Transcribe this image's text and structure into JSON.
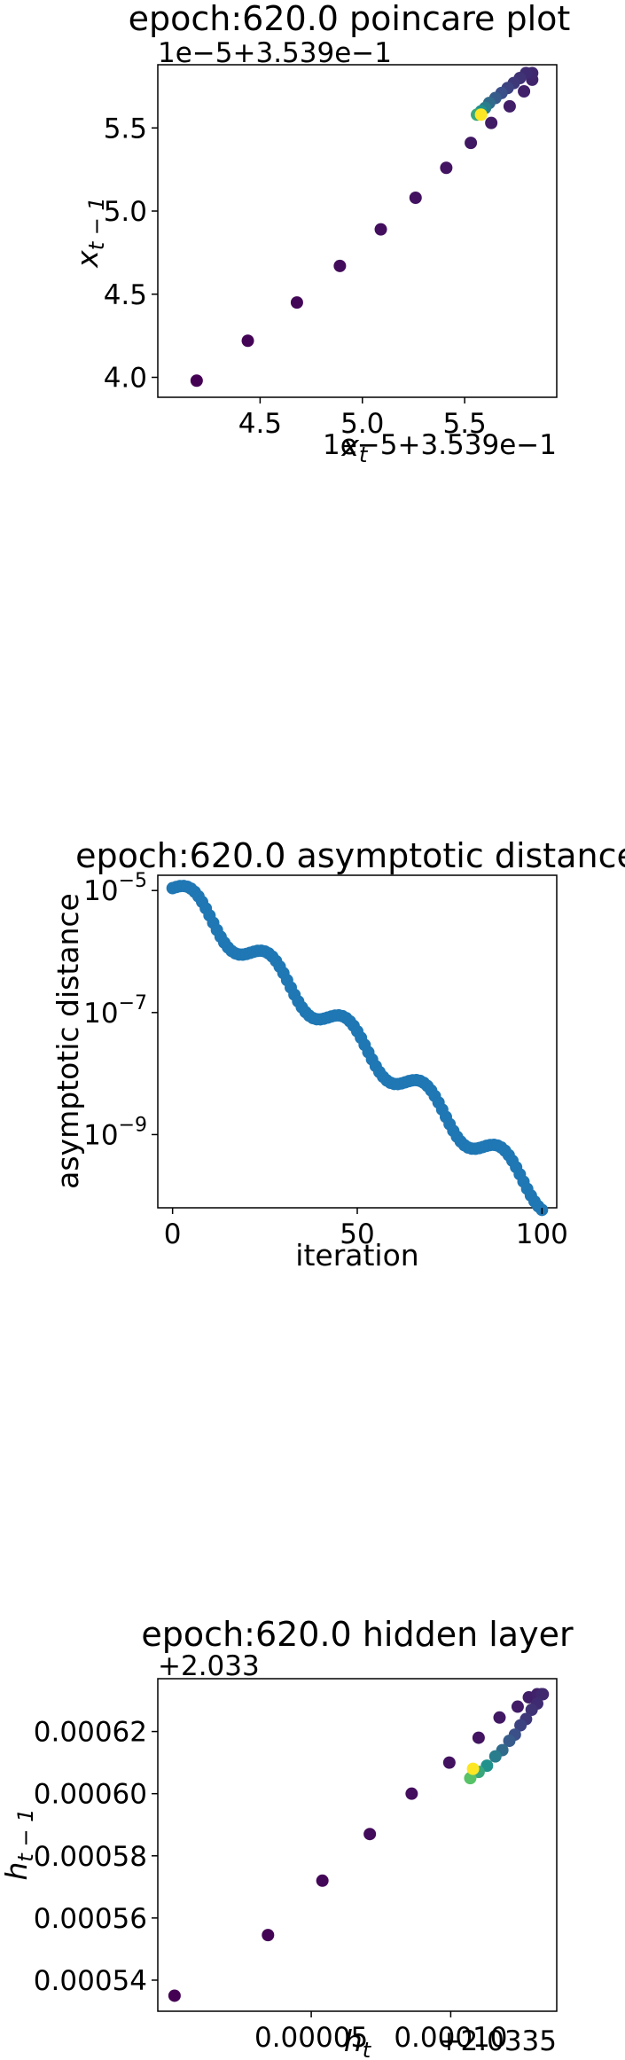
{
  "chart_data": [
    {
      "type": "scatter",
      "title": "epoch:620.0 poincare plot",
      "xlabel": "x_t",
      "ylabel": "x_{t-1}",
      "x_offset_text": "1e−5+3.539e−1",
      "y_offset_text": "1e−5+3.539e−1",
      "xlim": [
        4.0,
        5.95
      ],
      "ylim": [
        3.88,
        5.88
      ],
      "xticks": [
        4.5,
        5.0,
        5.5
      ],
      "xtick_labels": [
        "4.5",
        "5.0",
        "5.5"
      ],
      "yticks": [
        4.0,
        4.5,
        5.0,
        5.5
      ],
      "ytick_labels": [
        "4.0",
        "4.5",
        "5.0",
        "5.5"
      ],
      "colormap": "viridis",
      "points": [
        {
          "x": 4.19,
          "y": 3.98,
          "c": 0.0
        },
        {
          "x": 4.44,
          "y": 4.22,
          "c": 0.01
        },
        {
          "x": 4.68,
          "y": 4.45,
          "c": 0.02
        },
        {
          "x": 4.89,
          "y": 4.67,
          "c": 0.03
        },
        {
          "x": 5.09,
          "y": 4.89,
          "c": 0.04
        },
        {
          "x": 5.26,
          "y": 5.08,
          "c": 0.05
        },
        {
          "x": 5.41,
          "y": 5.26,
          "c": 0.06
        },
        {
          "x": 5.53,
          "y": 5.41,
          "c": 0.07
        },
        {
          "x": 5.63,
          "y": 5.53,
          "c": 0.08
        },
        {
          "x": 5.72,
          "y": 5.63,
          "c": 0.09
        },
        {
          "x": 5.79,
          "y": 5.72,
          "c": 0.1
        },
        {
          "x": 5.83,
          "y": 5.79,
          "c": 0.11
        },
        {
          "x": 5.83,
          "y": 5.83,
          "c": 0.12
        },
        {
          "x": 5.8,
          "y": 5.83,
          "c": 0.13
        },
        {
          "x": 5.77,
          "y": 5.8,
          "c": 0.15
        },
        {
          "x": 5.74,
          "y": 5.77,
          "c": 0.17
        },
        {
          "x": 5.71,
          "y": 5.74,
          "c": 0.2
        },
        {
          "x": 5.68,
          "y": 5.71,
          "c": 0.24
        },
        {
          "x": 5.65,
          "y": 5.68,
          "c": 0.29
        },
        {
          "x": 5.62,
          "y": 5.65,
          "c": 0.35
        },
        {
          "x": 5.6,
          "y": 5.62,
          "c": 0.42
        },
        {
          "x": 5.58,
          "y": 5.6,
          "c": 0.5
        },
        {
          "x": 5.56,
          "y": 5.58,
          "c": 0.6
        },
        {
          "x": 5.58,
          "y": 5.58,
          "c": 1.0
        }
      ]
    },
    {
      "type": "scatter",
      "title": "epoch:620.0 asymptotic distance",
      "xlabel": "iteration",
      "ylabel": "asymptotic distance",
      "xlim": [
        -4,
        104
      ],
      "ylim_log10": [
        -10.2,
        -4.75
      ],
      "yscale": "log",
      "xticks": [
        0,
        50,
        100
      ],
      "xtick_labels": [
        "0",
        "50",
        "100"
      ],
      "yticks_log10": [
        -5,
        -7,
        -9
      ],
      "ytick_base": "10",
      "ytick_exponents": [
        "−5",
        "−7",
        "−9"
      ],
      "color": "#1f77b4",
      "x": [
        0,
        100
      ],
      "y_log10_start": -4.95,
      "y_log10_end": -10.0
    },
    {
      "type": "scatter",
      "title": "epoch:620.0 hidden layer",
      "xlabel": "h_t",
      "ylabel": "h_{t-1}",
      "x_offset_text": "+2.0335",
      "y_offset_text": "+2.033",
      "xlim": [
        -5e-06,
        0.000138
      ],
      "ylim": [
        0.00053,
        0.000637
      ],
      "xticks": [
        5e-05,
        0.0001
      ],
      "xtick_labels": [
        "0.00005",
        "0.00010"
      ],
      "yticks": [
        0.00054,
        0.00056,
        0.00058,
        0.0006,
        0.00062
      ],
      "ytick_labels": [
        "0.00054",
        "0.00056",
        "0.00058",
        "0.00060",
        "0.00062"
      ],
      "colormap": "viridis",
      "points": [
        {
          "x": 1e-06,
          "y": 0.000535,
          "c": 0.0
        },
        {
          "x": 3.45e-05,
          "y": 0.0005545,
          "c": 0.01
        },
        {
          "x": 5.4e-05,
          "y": 0.000572,
          "c": 0.02
        },
        {
          "x": 7.1e-05,
          "y": 0.000587,
          "c": 0.03
        },
        {
          "x": 8.6e-05,
          "y": 0.0006,
          "c": 0.04
        },
        {
          "x": 9.95e-05,
          "y": 0.00061,
          "c": 0.05
        },
        {
          "x": 0.00011,
          "y": 0.000618,
          "c": 0.06
        },
        {
          "x": 0.0001175,
          "y": 0.0006245,
          "c": 0.07
        },
        {
          "x": 0.000124,
          "y": 0.000628,
          "c": 0.08
        },
        {
          "x": 0.000128,
          "y": 0.000631,
          "c": 0.09
        },
        {
          "x": 0.000131,
          "y": 0.000632,
          "c": 0.1
        },
        {
          "x": 0.0001325,
          "y": 0.000632,
          "c": 0.11
        },
        {
          "x": 0.000133,
          "y": 0.000632,
          "c": 0.12
        },
        {
          "x": 0.000131,
          "y": 0.000629,
          "c": 0.13
        },
        {
          "x": 0.000129,
          "y": 0.000627,
          "c": 0.15
        },
        {
          "x": 0.000127,
          "y": 0.000624,
          "c": 0.17
        },
        {
          "x": 0.000125,
          "y": 0.000622,
          "c": 0.2
        },
        {
          "x": 0.000123,
          "y": 0.000619,
          "c": 0.24
        },
        {
          "x": 0.000121,
          "y": 0.000617,
          "c": 0.29
        },
        {
          "x": 0.0001185,
          "y": 0.000614,
          "c": 0.35
        },
        {
          "x": 0.000116,
          "y": 0.000612,
          "c": 0.42
        },
        {
          "x": 0.000113,
          "y": 0.000609,
          "c": 0.5
        },
        {
          "x": 0.00011,
          "y": 0.000607,
          "c": 0.6
        },
        {
          "x": 0.000107,
          "y": 0.000605,
          "c": 0.72
        },
        {
          "x": 0.000108,
          "y": 0.000608,
          "c": 1.0
        }
      ]
    }
  ]
}
